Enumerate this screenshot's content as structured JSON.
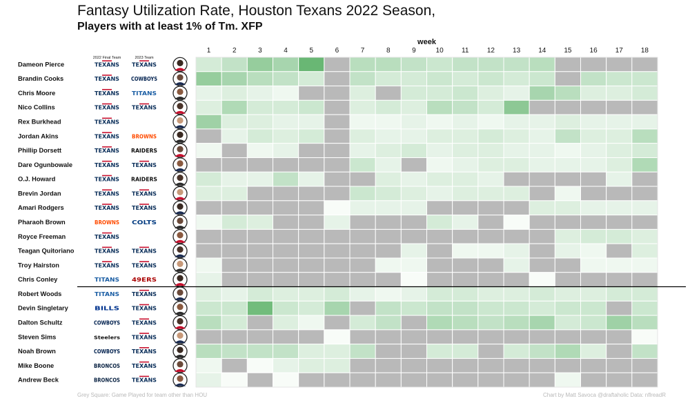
{
  "title": "Fantasy Utilization Rate, Houston Texans 2022 Season,",
  "subtitle": "Players with at least 1% of Tm. XFP",
  "footer_left": "Grey Square: Game Played for team other than HOU",
  "footer_right": "Chart by Matt Savoca   @draftaholic   Data: nflreadR",
  "colors": {
    "other_team": "#b9b9b9",
    "low": "#f8fcf8",
    "high": "#45a653",
    "grid": "#ffffff",
    "divider": "#000000"
  },
  "chart_data": {
    "type": "heatmap",
    "title": "Fantasy Utilization Rate, Houston Texans 2022 Season,",
    "subtitle": "Players with at least 1% of Tm. XFP",
    "xlabel": "week",
    "column_headers": [
      "2022 Final Team",
      "2023 Team"
    ],
    "x": [
      1,
      2,
      3,
      4,
      5,
      6,
      7,
      8,
      9,
      10,
      11,
      12,
      13,
      14,
      15,
      16,
      17,
      18
    ],
    "value_scale": "0 = white, 1 = darkest green, null = grey (game played for team other than HOU)",
    "rows": [
      {
        "player": "Dameon Pierce",
        "team_2022": "TEXANS",
        "team_2023": "TEXANS",
        "values": [
          0.2,
          0.3,
          0.55,
          0.45,
          0.8,
          null,
          0.35,
          0.35,
          0.3,
          0.25,
          0.3,
          0.3,
          0.3,
          0.35,
          null,
          null,
          null,
          null
        ]
      },
      {
        "player": "Brandin Cooks",
        "team_2022": "TEXANS",
        "team_2023": "COWBOYS",
        "values": [
          0.55,
          0.45,
          0.35,
          0.3,
          0.2,
          null,
          0.3,
          0.2,
          0.2,
          0.25,
          0.2,
          0.25,
          0.2,
          0.25,
          null,
          0.3,
          0.25,
          0.25
        ]
      },
      {
        "player": "Chris Moore",
        "team_2022": "TEXANS",
        "team_2023": "TITANS",
        "values": [
          0.1,
          0.15,
          0.1,
          0.05,
          null,
          null,
          0.15,
          null,
          0.2,
          0.2,
          0.25,
          0.15,
          0.1,
          0.45,
          0.35,
          0.15,
          0.15,
          0.2
        ]
      },
      {
        "player": "Nico Collins",
        "team_2022": "TEXANS",
        "team_2023": "TEXANS",
        "values": [
          0.15,
          0.4,
          0.2,
          0.2,
          0.25,
          null,
          0.15,
          0.2,
          0.15,
          0.35,
          0.3,
          0.2,
          0.6,
          null,
          null,
          null,
          null,
          null
        ]
      },
      {
        "player": "Rex Burkhead",
        "team_2022": "TEXANS",
        "team_2023": "",
        "values": [
          0.5,
          0.15,
          0.15,
          0.1,
          0.1,
          null,
          0.05,
          0.05,
          0.1,
          0.05,
          0.1,
          0.05,
          0.1,
          0.1,
          0.15,
          0.1,
          0.1,
          0.1
        ]
      },
      {
        "player": "Jordan Akins",
        "team_2022": "TEXANS",
        "team_2023": "BROWNS",
        "values": [
          null,
          0.1,
          0.2,
          0.15,
          0.2,
          null,
          0.15,
          0.1,
          0.1,
          0.15,
          0.15,
          0.2,
          0.15,
          0.1,
          0.3,
          0.15,
          0.15,
          0.35
        ]
      },
      {
        "player": "Phillip Dorsett",
        "team_2022": "TEXANS",
        "team_2023": "RAIDERS",
        "values": [
          0.05,
          null,
          0.05,
          0.1,
          null,
          null,
          0.1,
          0.15,
          0.2,
          0.1,
          0.15,
          0.15,
          0.1,
          0.1,
          0.05,
          0.1,
          0.15,
          0.2
        ]
      },
      {
        "player": "Dare Ogunbowale",
        "team_2022": "TEXANS",
        "team_2023": "TEXANS",
        "values": [
          null,
          null,
          null,
          null,
          null,
          null,
          0.25,
          0.1,
          null,
          0.05,
          0.1,
          0.15,
          0.15,
          0.1,
          0.1,
          0.1,
          0.15,
          0.4
        ]
      },
      {
        "player": "O.J. Howard",
        "team_2022": "TEXANS",
        "team_2023": "RAIDERS",
        "values": [
          0.2,
          0.1,
          0.1,
          0.3,
          0.1,
          null,
          null,
          0.15,
          0.1,
          0.15,
          0.15,
          0.1,
          null,
          null,
          null,
          null,
          0.1,
          null
        ]
      },
      {
        "player": "Brevin Jordan",
        "team_2022": "TEXANS",
        "team_2023": "TEXANS",
        "values": [
          0.15,
          0.15,
          null,
          null,
          null,
          null,
          0.25,
          0.2,
          0.15,
          0.1,
          0.15,
          0.15,
          0.15,
          null,
          0.05,
          null,
          null,
          null
        ]
      },
      {
        "player": "Amari Rodgers",
        "team_2022": "TEXANS",
        "team_2023": "TEXANS",
        "values": [
          null,
          null,
          null,
          null,
          null,
          0.0,
          0.1,
          0.1,
          0.1,
          null,
          null,
          null,
          null,
          0.15,
          0.15,
          0.1,
          0.1,
          0.1
        ]
      },
      {
        "player": "Pharaoh Brown",
        "team_2022": "BROWNS",
        "team_2023": "COLTS",
        "values": [
          0.05,
          0.2,
          0.15,
          null,
          null,
          0.1,
          null,
          null,
          null,
          0.2,
          0.1,
          null,
          0.0,
          null,
          null,
          null,
          null,
          null
        ]
      },
      {
        "player": "Royce Freeman",
        "team_2022": "TEXANS",
        "team_2023": "",
        "values": [
          null,
          null,
          null,
          null,
          null,
          null,
          null,
          null,
          null,
          null,
          null,
          null,
          null,
          null,
          0.15,
          0.2,
          0.2,
          0.15
        ]
      },
      {
        "player": "Teagan Quitoriano",
        "team_2022": "TEXANS",
        "team_2023": "TEXANS",
        "values": [
          null,
          null,
          null,
          null,
          null,
          null,
          null,
          null,
          0.1,
          null,
          0.05,
          0.05,
          0.1,
          null,
          0.1,
          0.05,
          null,
          0.15
        ]
      },
      {
        "player": "Troy Hairston",
        "team_2022": "TEXANS",
        "team_2023": "TEXANS",
        "values": [
          0.05,
          null,
          null,
          null,
          null,
          null,
          null,
          0.05,
          0.05,
          null,
          null,
          null,
          0.1,
          null,
          null,
          0.05,
          0.05,
          0.05
        ]
      },
      {
        "player": "Chris Conley",
        "team_2022": "TITANS",
        "team_2023": "49ERS",
        "values": [
          0.1,
          null,
          null,
          null,
          null,
          null,
          null,
          null,
          0.0,
          null,
          null,
          null,
          null,
          0.0,
          null,
          null,
          null,
          null
        ]
      },
      {
        "player": "Robert Woods",
        "team_2022": "TITANS",
        "team_2023": "TEXANS",
        "values": [
          0.15,
          0.1,
          0.2,
          0.15,
          0.15,
          0.2,
          0.1,
          0.05,
          0.1,
          0.2,
          0.2,
          0.15,
          0.15,
          0.2,
          0.15,
          0.15,
          0.2,
          0.2
        ]
      },
      {
        "player": "Devin Singletary",
        "team_2022": "BILLS",
        "team_2023": "TEXANS",
        "values": [
          0.25,
          0.25,
          0.75,
          0.25,
          0.2,
          0.45,
          null,
          0.3,
          0.25,
          0.3,
          0.3,
          0.25,
          0.25,
          0.2,
          0.25,
          0.25,
          null,
          0.25
        ]
      },
      {
        "player": "Dalton Schultz",
        "team_2022": "COWBOYS",
        "team_2023": "TEXANS",
        "values": [
          0.35,
          0.2,
          null,
          0.15,
          0.05,
          null,
          0.2,
          0.3,
          null,
          0.4,
          0.35,
          0.3,
          0.35,
          0.45,
          0.2,
          0.25,
          0.5,
          0.35
        ]
      },
      {
        "player": "Steven Sims",
        "team_2022": "STEELERS",
        "team_2023": "TEXANS",
        "values": [
          null,
          null,
          null,
          null,
          null,
          0.0,
          null,
          null,
          null,
          null,
          null,
          null,
          null,
          null,
          null,
          null,
          null,
          0.0
        ]
      },
      {
        "player": "Noah Brown",
        "team_2022": "COWBOYS",
        "team_2023": "TEXANS",
        "values": [
          0.35,
          0.3,
          0.3,
          0.3,
          0.15,
          0.15,
          0.3,
          null,
          null,
          0.2,
          0.2,
          null,
          0.2,
          0.3,
          0.4,
          0.15,
          null,
          0.3
        ]
      },
      {
        "player": "Mike Boone",
        "team_2022": "BRONCOS",
        "team_2023": "TEXANS",
        "values": [
          0.05,
          null,
          0.0,
          0.1,
          0.15,
          0.15,
          null,
          null,
          null,
          null,
          null,
          null,
          null,
          null,
          null,
          null,
          null,
          null
        ]
      },
      {
        "player": "Andrew Beck",
        "team_2022": "BRONCOS",
        "team_2023": "TEXANS",
        "values": [
          0.1,
          0.0,
          null,
          0.0,
          null,
          null,
          null,
          null,
          null,
          null,
          null,
          null,
          null,
          null,
          0.05,
          null,
          null,
          null
        ]
      }
    ]
  },
  "team_logos": {
    "TEXANS": {
      "text": "TEXANS",
      "color": "#0b2f5a",
      "top_color": "#c8102e"
    },
    "COWBOYS": {
      "text": "COWBOYS",
      "color": "#00204e"
    },
    "TITANS": {
      "text": "TITANS",
      "color": "#1b5ea4"
    },
    "BROWNS": {
      "text": "BROWNS",
      "color": "#ff4b00"
    },
    "RAIDERS": {
      "text": "RAIDERS",
      "color": "#101010"
    },
    "COLTS": {
      "text": "COLTS",
      "color": "#003a80"
    },
    "49ERS": {
      "text": "49ERS",
      "color": "#aa0000"
    },
    "BILLS": {
      "text": "BILLS",
      "color": "#00338d"
    },
    "STEELERS": {
      "text": "Steelers",
      "color": "#101010"
    },
    "BRONCOS": {
      "text": "BRONCOS",
      "color": "#0a2343"
    }
  }
}
